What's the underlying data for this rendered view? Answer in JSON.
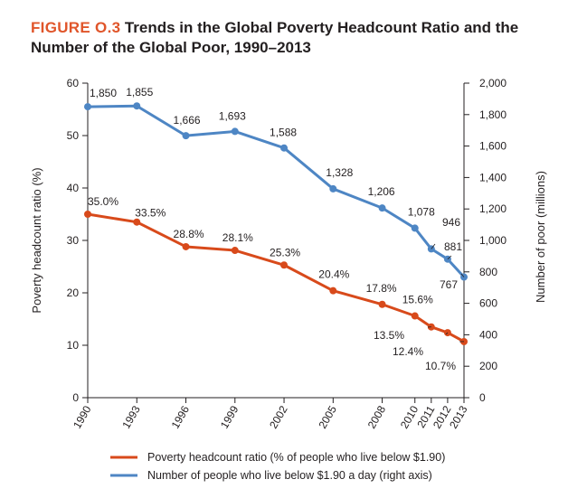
{
  "figure": {
    "label": "FIGURE O.3",
    "title": "Trends in the Global Poverty Headcount Ratio and the Number of the Global Poor, 1990–2013"
  },
  "chart_data": {
    "type": "line",
    "x": [
      "1990",
      "1993",
      "1996",
      "1999",
      "2002",
      "2005",
      "2008",
      "2010",
      "2011",
      "2012",
      "2013"
    ],
    "series": [
      {
        "name": "Poverty headcount ratio (% of people who live below $1.90)",
        "axis": "left",
        "color": "#d84a1b",
        "values": [
          35.0,
          33.5,
          28.8,
          28.1,
          25.3,
          20.4,
          17.8,
          15.6,
          13.5,
          12.4,
          10.7
        ],
        "labels": [
          "35.0%",
          "33.5%",
          "28.8%",
          "28.1%",
          "25.3%",
          "20.4%",
          "17.8%",
          "15.6%",
          "13.5%",
          "12.4%",
          "10.7%"
        ]
      },
      {
        "name": "Number of people who live below $1.90 a day (right axis)",
        "axis": "right",
        "color": "#4e86c4",
        "values": [
          1850,
          1855,
          1666,
          1693,
          1588,
          1328,
          1206,
          1078,
          946,
          881,
          767
        ],
        "labels": [
          "1,850",
          "1,855",
          "1,666",
          "1,693",
          "1,588",
          "1,328",
          "1,206",
          "1,078",
          "946",
          "881",
          "767"
        ]
      }
    ],
    "ylabel_left": "Poverty headcount ratio (%)",
    "ylabel_right": "Number of poor (millions)",
    "ylim_left": [
      0,
      60
    ],
    "ylim_right": [
      0,
      2000
    ],
    "yticks_left": [
      "0",
      "10",
      "20",
      "30",
      "40",
      "50",
      "60"
    ],
    "yticks_right": [
      "0",
      "200",
      "400",
      "600",
      "800",
      "1,000",
      "1,200",
      "1,400",
      "1,600",
      "1,800",
      "2,000"
    ],
    "grid": false,
    "legend_position": "bottom"
  }
}
